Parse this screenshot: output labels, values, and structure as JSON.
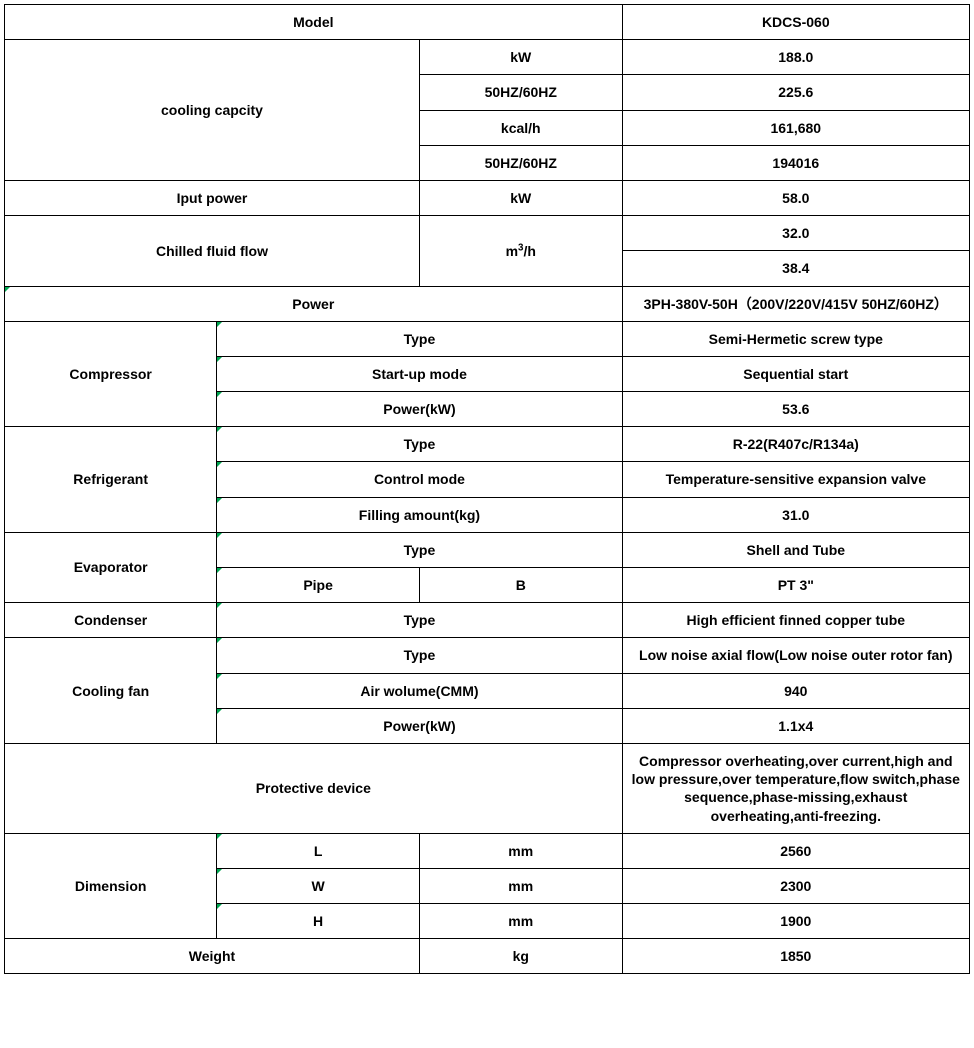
{
  "header": {
    "model_label": "Model",
    "model_value": "KDCS-060"
  },
  "cooling": {
    "label": "cooling capcity",
    "unit1": "kW",
    "val1": "188.0",
    "unit2": "50HZ/60HZ",
    "val2": "225.6",
    "unit3": "kcal/h",
    "val3": "161,680",
    "unit4": "50HZ/60HZ",
    "val4": "194016"
  },
  "input_power": {
    "label": "Iput power",
    "unit": "kW",
    "val": "58.0"
  },
  "chilled": {
    "label": "Chilled fluid flow",
    "unit_html": "m<sup>3</sup>/h",
    "val1": "32.0",
    "val2": "38.4"
  },
  "power": {
    "label": "Power",
    "val": "3PH-380V-50H（200V/220V/415V 50HZ/60HZ）"
  },
  "compressor": {
    "label": "Compressor",
    "r1l": "Type",
    "r1v": "Semi-Hermetic screw type",
    "r2l": "Start-up mode",
    "r2v": "Sequential start",
    "r3l": "Power(kW)",
    "r3v": "53.6"
  },
  "refrigerant": {
    "label": "Refrigerant",
    "r1l": "Type",
    "r1v": "R-22(R407c/R134a)",
    "r2l": "Control mode",
    "r2v": "Temperature-sensitive expansion valve",
    "r3l": "Filling amount(kg)",
    "r3v": "31.0"
  },
  "evaporator": {
    "label": "Evaporator",
    "r1l": "Type",
    "r1v": "Shell and Tube",
    "r2l": "Pipe",
    "r2u": "B",
    "r2v": "PT 3\""
  },
  "condenser": {
    "label": "Condenser",
    "l": "Type",
    "v": "High efficient finned copper tube"
  },
  "fan": {
    "label": "Cooling fan",
    "r1l": "Type",
    "r1v": "Low noise axial flow(Low noise outer rotor fan)",
    "r2l": "Air wolume(CMM)",
    "r2v": "940",
    "r3l": "Power(kW)",
    "r3v": "1.1x4"
  },
  "protective": {
    "label": "Protective device",
    "val": "Compressor overheating,over current,high and low pressure,over temperature,flow switch,phase sequence,phase-missing,exhaust overheating,anti-freezing."
  },
  "dimension": {
    "label": "Dimension",
    "r1l": "L",
    "r1u": "mm",
    "r1v": "2560",
    "r2l": "W",
    "r2u": "mm",
    "r2v": "2300",
    "r3l": "H",
    "r3u": "mm",
    "r3v": "1900"
  },
  "weight": {
    "label": "Weight",
    "unit": "kg",
    "val": "1850"
  }
}
